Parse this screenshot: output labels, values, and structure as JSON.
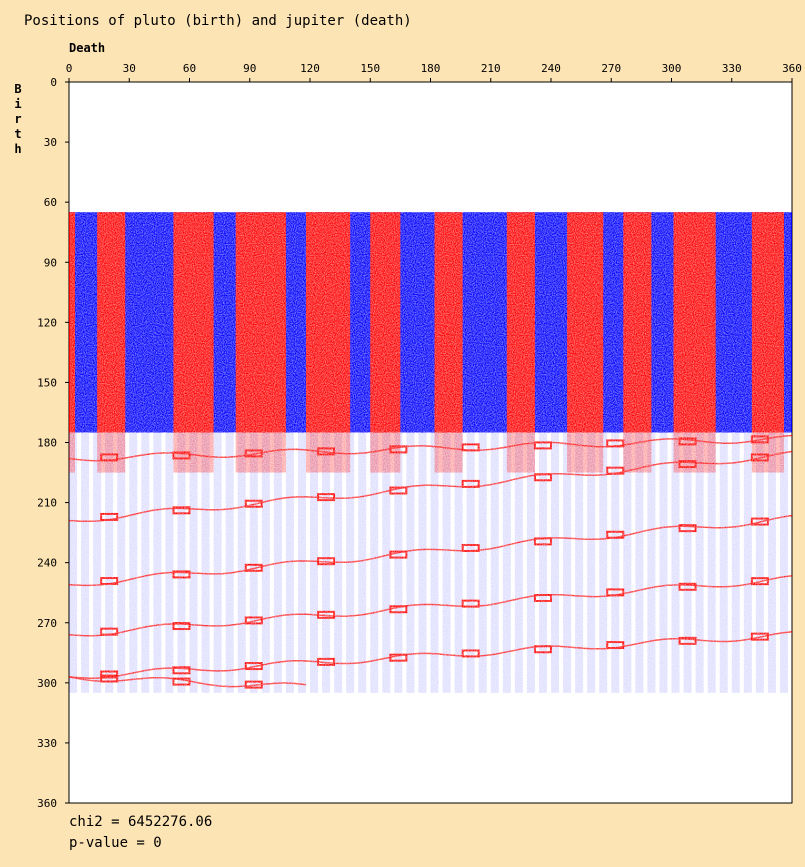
{
  "chart_data": {
    "type": "heatmap",
    "title": "Positions of pluto (birth) and jupiter (death)",
    "xlabel": "Death",
    "ylabel": "Birth",
    "xlim": [
      0,
      360
    ],
    "ylim": [
      0,
      360
    ],
    "x_ticks": [
      "0",
      "30",
      "60",
      "90",
      "120",
      "150",
      "180",
      "210",
      "240",
      "270",
      "300",
      "330",
      "360"
    ],
    "y_ticks": [
      "0",
      "30",
      "60",
      "90",
      "120",
      "150",
      "180",
      "210",
      "240",
      "270",
      "300",
      "330",
      "360"
    ],
    "colors": {
      "above_expected": "#ff0000",
      "below_expected": "#0000ff",
      "background": "#ffffff",
      "page": "#fde4b4"
    },
    "dense_band": {
      "birth_start": 65,
      "birth_end": 175
    },
    "red_columns_death": [
      [
        0,
        3
      ],
      [
        14,
        28
      ],
      [
        52,
        72
      ],
      [
        83,
        108
      ],
      [
        118,
        140
      ],
      [
        150,
        165
      ],
      [
        182,
        196
      ],
      [
        218,
        232
      ],
      [
        248,
        266
      ],
      [
        276,
        290
      ],
      [
        301,
        322
      ],
      [
        340,
        356
      ]
    ],
    "red_curves": [
      {
        "birth_at_death_0": 188,
        "birth_at_death_360": 178,
        "from": 0,
        "to": 360
      },
      {
        "birth_at_death_0": 219,
        "birth_at_death_360": 186,
        "from": 0,
        "to": 360
      },
      {
        "birth_at_death_0": 251,
        "birth_at_death_360": 218,
        "from": 0,
        "to": 360
      },
      {
        "birth_at_death_0": 276,
        "birth_at_death_360": 248,
        "from": 0,
        "to": 360
      },
      {
        "birth_at_death_0": 297,
        "birth_at_death_360": 276,
        "from": 0,
        "to": 360
      },
      {
        "birth_at_death_0": 297,
        "birth_at_death_360": 302,
        "from": 0,
        "to": 118
      }
    ]
  },
  "stats": {
    "chi2": "chi2 = 6452276.06",
    "p_value": "p-value = 0"
  }
}
